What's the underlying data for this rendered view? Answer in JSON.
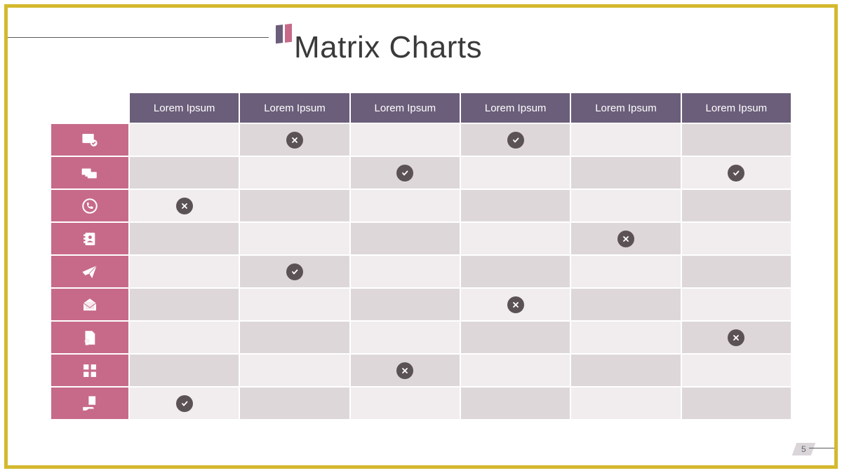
{
  "title": "Matrix Charts",
  "page_number": "5",
  "colors": {
    "frame_border": "#d4b92e",
    "title_text": "#3a3a3a",
    "logo_bar_a": "#6b5e7a",
    "logo_bar_b": "#c76a89",
    "header_bg": "#6b5e7a",
    "header_text": "#ffffff",
    "rowhead_bg": "#c76a89",
    "rowhead_icon": "#ffffff",
    "cell_bg_light": "#f1edef",
    "cell_bg_shaded": "#ddd7da",
    "mark_bg": "#5b5256",
    "mark_icon": "#ffffff",
    "pagebadge_bg": "#d9d5d9",
    "pagebadge_text": "#6a6370"
  },
  "columns": [
    "Lorem Ipsum",
    "Lorem Ipsum",
    "Lorem Ipsum",
    "Lorem Ipsum",
    "Lorem Ipsum",
    "Lorem Ipsum"
  ],
  "rows": [
    {
      "icon": "window-check",
      "cells": [
        "",
        "cross",
        "",
        "check",
        "",
        ""
      ]
    },
    {
      "icon": "monitors",
      "cells": [
        "",
        "",
        "check",
        "",
        "",
        "check"
      ]
    },
    {
      "icon": "phone-circle",
      "cells": [
        "cross",
        "",
        "",
        "",
        "",
        ""
      ]
    },
    {
      "icon": "address-book",
      "cells": [
        "",
        "",
        "",
        "",
        "cross",
        ""
      ]
    },
    {
      "icon": "paper-plane",
      "cells": [
        "",
        "check",
        "",
        "",
        "",
        ""
      ]
    },
    {
      "icon": "mail-open",
      "cells": [
        "",
        "",
        "",
        "cross",
        "",
        ""
      ]
    },
    {
      "icon": "doc-ribbon",
      "cells": [
        "",
        "",
        "",
        "",
        "",
        "cross"
      ]
    },
    {
      "icon": "grid-docs",
      "cells": [
        "",
        "",
        "cross",
        "",
        "",
        ""
      ]
    },
    {
      "icon": "hand-doc",
      "cells": [
        "check",
        "",
        "",
        "",
        "",
        ""
      ]
    }
  ]
}
